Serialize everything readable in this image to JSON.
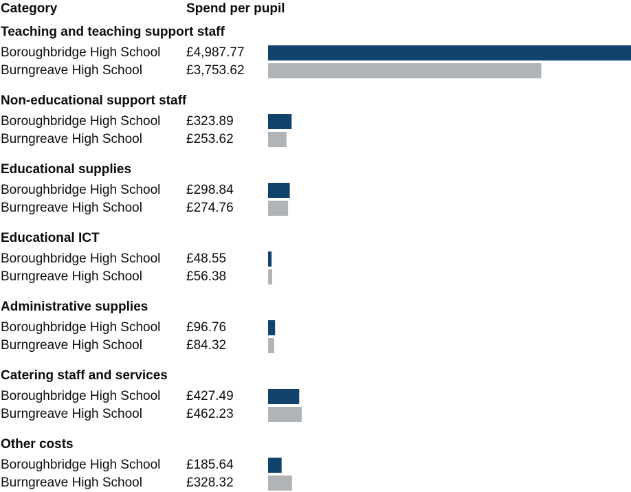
{
  "headers": {
    "category": "Category",
    "value": "Spend per pupil"
  },
  "colors": {
    "school": "#12436d",
    "comparison": "#b1b4b6"
  },
  "chart_data": {
    "type": "bar",
    "orientation": "horizontal",
    "grouping": "paired",
    "currency": "£",
    "series": [
      {
        "name": "Boroughbridge High School",
        "color": "#12436d",
        "values": [
          4987.77,
          323.89,
          298.84,
          48.55,
          96.76,
          427.49,
          185.64
        ]
      },
      {
        "name": "Burngreave High School",
        "color": "#b1b4b6",
        "values": [
          3753.62,
          253.62,
          274.76,
          56.38,
          84.32,
          462.23,
          328.32
        ]
      }
    ],
    "categories": [
      "Teaching and teaching support staff",
      "Non-educational support staff",
      "Educational supplies",
      "Educational ICT",
      "Administrative supplies",
      "Catering staff and services",
      "Other costs"
    ],
    "value_labels": [
      [
        "£4,987.77",
        "£3,753.62"
      ],
      [
        "£323.89",
        "£253.62"
      ],
      [
        "£298.84",
        "£274.76"
      ],
      [
        "£48.55",
        "£56.38"
      ],
      [
        "£96.76",
        "£84.32"
      ],
      [
        "£427.49",
        "£462.23"
      ],
      [
        "£185.64",
        "£328.32"
      ]
    ],
    "xlim": [
      0,
      4987.77
    ]
  }
}
